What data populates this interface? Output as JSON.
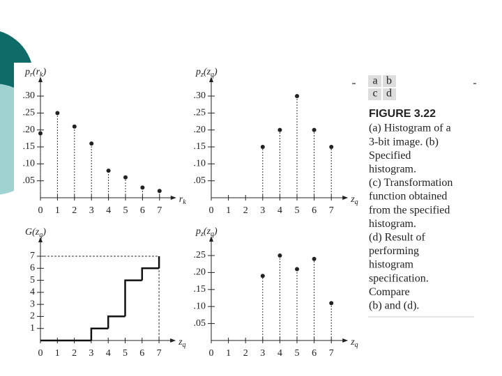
{
  "chart_data": [
    {
      "type": "stem",
      "y_label_parts": [
        "p",
        "r",
        "(r",
        "k",
        ")"
      ],
      "x_label_parts": [
        "r",
        "k"
      ],
      "x": [
        0,
        1,
        2,
        3,
        4,
        5,
        6,
        7
      ],
      "values": [
        0.19,
        0.25,
        0.21,
        0.16,
        0.08,
        0.06,
        0.03,
        0.02
      ],
      "xlim": [
        0,
        7
      ],
      "ylim": [
        0,
        0.3
      ],
      "yticks": [
        {
          "value": 0.05,
          "label": ".05"
        },
        {
          "value": 0.1,
          "label": ".10"
        },
        {
          "value": 0.15,
          "label": ".15"
        },
        {
          "value": 0.2,
          "label": ".20"
        },
        {
          "value": 0.25,
          "label": ".25"
        },
        {
          "value": 0.3,
          "label": ".30"
        }
      ]
    },
    {
      "type": "stem",
      "y_label_parts": [
        "p",
        "z",
        "(z",
        "q",
        ")"
      ],
      "x_label_parts": [
        "z",
        "q"
      ],
      "x": [
        0,
        1,
        2,
        3,
        4,
        5,
        6,
        7
      ],
      "values": [
        0,
        0,
        0,
        0.15,
        0.2,
        0.3,
        0.2,
        0.15
      ],
      "xlim": [
        0,
        7
      ],
      "ylim": [
        0,
        0.3
      ],
      "yticks": [
        {
          "value": 0.05,
          "label": ".05"
        },
        {
          "value": 0.1,
          "label": ".10"
        },
        {
          "value": 0.15,
          "label": ".15"
        },
        {
          "value": 0.2,
          "label": ".20"
        },
        {
          "value": 0.25,
          "label": ".25"
        },
        {
          "value": 0.3,
          "label": ".30"
        }
      ]
    },
    {
      "type": "step",
      "y_label_parts": [
        "G(z",
        "q",
        ")"
      ],
      "x_label_parts": [
        "z",
        "q"
      ],
      "x": [
        0,
        1,
        2,
        3,
        4,
        5,
        6,
        7
      ],
      "values": [
        0,
        0,
        0,
        1,
        2,
        5,
        6,
        7
      ],
      "xlim": [
        0,
        7
      ],
      "ylim": [
        0,
        7
      ],
      "yticks": [
        1,
        2,
        3,
        4,
        5,
        6,
        7
      ]
    },
    {
      "type": "stem",
      "y_label_parts": [
        "p",
        "z",
        "(z",
        "q",
        ")"
      ],
      "x_label_parts": [
        "z",
        "q"
      ],
      "x": [
        0,
        1,
        2,
        3,
        4,
        5,
        6,
        7
      ],
      "values": [
        0,
        0,
        0,
        0.19,
        0.25,
        0.21,
        0.24,
        0.11
      ],
      "xlim": [
        0,
        7
      ],
      "ylim": [
        0,
        0.25
      ],
      "yticks": [
        {
          "value": 0.05,
          "label": ".05"
        },
        {
          "value": 0.1,
          "label": ".10"
        },
        {
          "value": 0.15,
          "label": ".15"
        },
        {
          "value": 0.2,
          "label": ".20"
        },
        {
          "value": 0.25,
          "label": ".25"
        }
      ]
    }
  ],
  "figure": {
    "panel_labels": [
      [
        "a",
        "b"
      ],
      [
        "c",
        "d"
      ]
    ],
    "title": "FIGURE 3.22",
    "caption_lines": [
      "(a) Histogram of a",
      "3-bit image. (b)",
      "Specified",
      "histogram.",
      "(c) Transformation",
      "function obtained",
      "from the specified",
      "histogram.",
      "(d) Result of",
      "performing",
      "histogram",
      "specification.",
      "Compare",
      "(b) and (d)."
    ]
  }
}
